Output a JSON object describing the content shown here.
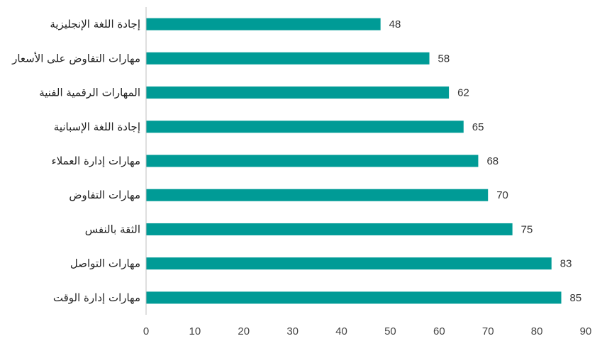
{
  "chart_data": {
    "type": "bar",
    "orientation": "horizontal",
    "categories": [
      "إجادة اللغة الإنجليزية",
      "مهارات التفاوض على الأسعار",
      "المهارات الرقمية الفنية",
      "إجادة اللغة الإسبانية",
      "مهارات إدارة العملاء",
      "مهارات التفاوض",
      "الثقة بالنفس",
      "مهارات التواصل",
      "مهارات إدارة الوقت"
    ],
    "values": [
      48,
      58,
      62,
      65,
      68,
      70,
      75,
      83,
      85
    ],
    "data_labels": [
      "48",
      "58",
      "62",
      "65",
      "68",
      "70",
      "75",
      "83",
      "85"
    ],
    "xlim": [
      0,
      90
    ],
    "x_ticks": [
      0,
      10,
      20,
      30,
      40,
      50,
      60,
      70,
      80,
      90
    ],
    "x_tick_labels": [
      "0",
      "10",
      "20",
      "30",
      "40",
      "50",
      "60",
      "70",
      "80",
      "90"
    ],
    "bar_color": "#009B96",
    "axis_color": "#BFBFBF",
    "grid": false,
    "legend": "none"
  }
}
